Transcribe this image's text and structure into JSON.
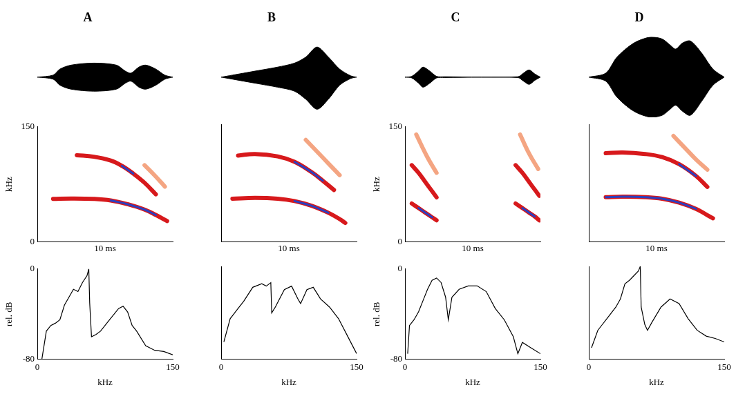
{
  "chart_data": [
    {
      "type": "area",
      "title": "A",
      "color": "#000000",
      "xlim": [
        0,
        12
      ],
      "ylim": [
        -1,
        1
      ],
      "tick_labels": false,
      "x": [
        0,
        1.4,
        2,
        3,
        5,
        7,
        7.8,
        8.3,
        9,
        9.6,
        10.5,
        11.3,
        12
      ],
      "upper": [
        0,
        0.05,
        0.2,
        0.3,
        0.35,
        0.3,
        0.15,
        0.1,
        0.25,
        0.3,
        0.2,
        0.05,
        0
      ],
      "lower": [
        0,
        -0.05,
        -0.2,
        -0.3,
        -0.35,
        -0.3,
        -0.15,
        -0.1,
        -0.25,
        -0.3,
        -0.2,
        -0.05,
        0
      ]
    },
    {
      "type": "spectrogram",
      "ylabel": "kHz",
      "xlabel": "10 ms",
      "xlim": [
        0,
        12
      ],
      "ylim": [
        0,
        150
      ],
      "yticks": [
        0,
        150
      ],
      "tick_labels": "y",
      "series": [
        {
          "color": "#f4a582",
          "line_style": "thick",
          "x": [
            9.5,
            10.5,
            11.3
          ],
          "values": [
            100,
            85,
            72
          ]
        },
        {
          "color": "#d7191c",
          "line_style": "thick",
          "x": [
            3.5,
            5,
            6.5,
            7.5,
            8.5,
            9.5,
            10.5
          ],
          "values": [
            113,
            111,
            106,
            99,
            89,
            77,
            62
          ]
        },
        {
          "color": "#d7191c",
          "line_style": "thick",
          "x": [
            1.4,
            3,
            5,
            6.5,
            8,
            9.5,
            10.5,
            11.5
          ],
          "values": [
            56,
            56.5,
            56,
            54,
            49,
            42,
            35,
            27
          ]
        },
        {
          "color": "#2b3fbf",
          "line_style": "thin",
          "x": [
            7.5,
            8.5
          ],
          "values": [
            99,
            89
          ]
        },
        {
          "color": "#2b3fbf",
          "line_style": "thin",
          "x": [
            6.5,
            8,
            9.5,
            10.5
          ],
          "values": [
            54,
            49,
            42,
            35
          ]
        }
      ]
    },
    {
      "type": "line",
      "ylabel": "rel. dB",
      "xlabel": "kHz",
      "color": "#000000",
      "xlim": [
        0,
        150
      ],
      "xticks": [
        0,
        150
      ],
      "ylim": [
        -80,
        0
      ],
      "yticks": [
        -80,
        0
      ],
      "x": [
        5,
        10,
        15,
        20,
        25,
        30,
        35,
        40,
        45,
        50,
        55,
        57,
        58,
        60,
        65,
        70,
        80,
        90,
        95,
        100,
        105,
        110,
        120,
        130,
        140,
        150
      ],
      "values": [
        -80,
        -55,
        -50,
        -48,
        -45,
        -32,
        -25,
        -18,
        -20,
        -12,
        -6,
        0,
        -30,
        -60,
        -58,
        -55,
        -45,
        -35,
        -33,
        -38,
        -50,
        -55,
        -68,
        -72,
        -73,
        -76
      ]
    },
    {
      "type": "area",
      "title": "B",
      "color": "#000000",
      "xlim": [
        0,
        12
      ],
      "ylim": [
        -1,
        1
      ],
      "tick_labels": false,
      "x": [
        0,
        1,
        3,
        5,
        6.5,
        7.5,
        8.5,
        9.5,
        10.5,
        11.5,
        12
      ],
      "upper": [
        0,
        0.05,
        0.15,
        0.25,
        0.35,
        0.5,
        0.75,
        0.5,
        0.2,
        0.03,
        0
      ],
      "lower": [
        0,
        -0.05,
        -0.15,
        -0.25,
        -0.35,
        -0.55,
        -0.8,
        -0.55,
        -0.2,
        -0.03,
        0
      ]
    },
    {
      "type": "spectrogram",
      "xlabel": "10 ms",
      "xlim": [
        0,
        12
      ],
      "ylim": [
        0,
        150
      ],
      "tick_labels": false,
      "series": [
        {
          "color": "#f4a582",
          "line_style": "thick",
          "x": [
            7.5,
            8.5,
            9.5,
            10.5
          ],
          "values": [
            130,
            115,
            100,
            85
          ]
        },
        {
          "color": "#d7191c",
          "line_style": "thick",
          "x": [
            1.5,
            3,
            5,
            6.5,
            8,
            9,
            10
          ],
          "values": [
            110,
            112,
            109,
            102,
            89,
            78,
            66
          ]
        },
        {
          "color": "#d7191c",
          "line_style": "thick",
          "x": [
            1,
            3,
            5,
            6.5,
            8,
            9.5,
            10.5,
            11
          ],
          "values": [
            55,
            56,
            55,
            52,
            46,
            37,
            29,
            24
          ]
        },
        {
          "color": "#2b3fbf",
          "line_style": "thin",
          "x": [
            6.5,
            8,
            9
          ],
          "values": [
            102,
            89,
            78
          ]
        },
        {
          "color": "#2b3fbf",
          "line_style": "thin",
          "x": [
            6.5,
            8,
            9.5
          ],
          "values": [
            52,
            46,
            37
          ]
        }
      ]
    },
    {
      "type": "line",
      "xlabel": "kHz",
      "color": "#000000",
      "xlim": [
        0,
        150
      ],
      "xticks": [
        0,
        150
      ],
      "ylim": [
        -80,
        0
      ],
      "tick_labels": "x",
      "x": [
        3,
        10,
        15,
        20,
        25,
        35,
        45,
        50,
        55,
        56,
        60,
        70,
        78,
        85,
        88,
        95,
        102,
        110,
        120,
        130,
        140,
        150
      ],
      "values": [
        -65,
        -45,
        -40,
        -35,
        -30,
        -18,
        -15,
        -17,
        -14,
        -40,
        -35,
        -20,
        -17,
        -28,
        -32,
        -20,
        -18,
        -28,
        -35,
        -45,
        -60,
        -75
      ]
    },
    {
      "type": "area",
      "title": "C",
      "color": "#000000",
      "xlim": [
        0,
        12
      ],
      "ylim": [
        -1,
        1
      ],
      "tick_labels": false,
      "x": [
        0,
        0.6,
        1.2,
        1.6,
        2.2,
        2.8,
        3.5,
        10,
        10.5,
        11,
        11.5,
        12
      ],
      "upper": [
        0,
        0.02,
        0.15,
        0.25,
        0.15,
        0.02,
        0.01,
        0.01,
        0.1,
        0.18,
        0.08,
        0
      ],
      "lower": [
        0,
        -0.02,
        -0.15,
        -0.25,
        -0.15,
        -0.02,
        -0.01,
        -0.01,
        -0.1,
        -0.18,
        -0.08,
        0
      ]
    },
    {
      "type": "spectrogram",
      "ylabel": "kHz",
      "xlabel": "10 ms",
      "xlim": [
        0,
        12
      ],
      "ylim": [
        0,
        150
      ],
      "yticks": [
        0,
        150
      ],
      "tick_labels": "y",
      "series": [
        {
          "color": "#f4a582",
          "line_style": "thick",
          "x": [
            1,
            2,
            2.8
          ],
          "values": [
            140,
            110,
            90
          ]
        },
        {
          "color": "#f4a582",
          "line_style": "thick",
          "x": [
            10.2,
            11,
            11.8
          ],
          "values": [
            140,
            115,
            95
          ]
        },
        {
          "color": "#d7191c",
          "line_style": "thick",
          "x": [
            0.6,
            1.2,
            1.8,
            2.4,
            2.8
          ],
          "values": [
            100,
            90,
            78,
            66,
            58
          ]
        },
        {
          "color": "#d7191c",
          "line_style": "thick",
          "x": [
            9.8,
            10.4,
            11,
            11.6,
            11.9
          ],
          "values": [
            100,
            90,
            78,
            66,
            60
          ]
        },
        {
          "color": "#d7191c",
          "line_style": "thick",
          "x": [
            0.6,
            1.2,
            1.8,
            2.4,
            2.8
          ],
          "values": [
            50,
            44,
            38,
            32,
            28
          ]
        },
        {
          "color": "#d7191c",
          "line_style": "thick",
          "x": [
            9.8,
            10.4,
            11,
            11.5,
            11.9
          ],
          "values": [
            50,
            44,
            38,
            33,
            28
          ]
        },
        {
          "color": "#2b3fbf",
          "line_style": "thin",
          "x": [
            1.2,
            1.8,
            2.4
          ],
          "values": [
            44,
            38,
            32
          ]
        },
        {
          "color": "#2b3fbf",
          "line_style": "thin",
          "x": [
            10.4,
            11,
            11.5
          ],
          "values": [
            44,
            38,
            33
          ]
        }
      ]
    },
    {
      "type": "line",
      "ylabel": "rel. dB",
      "xlabel": "kHz",
      "color": "#000000",
      "xlim": [
        0,
        150
      ],
      "xticks": [
        0,
        150
      ],
      "ylim": [
        -80,
        0
      ],
      "yticks": [
        -80,
        0
      ],
      "x": [
        3,
        5,
        10,
        15,
        20,
        25,
        30,
        35,
        40,
        45,
        48,
        52,
        60,
        70,
        80,
        90,
        100,
        110,
        120,
        125,
        130,
        140,
        150
      ],
      "values": [
        -75,
        -50,
        -45,
        -38,
        -28,
        -18,
        -10,
        -8,
        -12,
        -25,
        -45,
        -25,
        -18,
        -15,
        -15,
        -20,
        -35,
        -45,
        -60,
        -75,
        -65,
        -70,
        -75
      ]
    },
    {
      "type": "area",
      "title": "D",
      "color": "#000000",
      "xlim": [
        0,
        12
      ],
      "ylim": [
        -1,
        1
      ],
      "tick_labels": false,
      "x": [
        0,
        1.5,
        2.5,
        4,
        5.5,
        6.5,
        7.2,
        7.7,
        8.3,
        9,
        10,
        11,
        12
      ],
      "upper": [
        0,
        0.1,
        0.5,
        0.85,
        1,
        0.95,
        0.8,
        0.7,
        0.85,
        0.9,
        0.6,
        0.2,
        0
      ],
      "lower": [
        0,
        -0.1,
        -0.5,
        -0.85,
        -1,
        -0.95,
        -0.8,
        -0.7,
        -0.85,
        -0.95,
        -0.6,
        -0.2,
        0
      ]
    },
    {
      "type": "spectrogram",
      "xlabel": "10 ms",
      "xlim": [
        0,
        12
      ],
      "ylim": [
        0,
        150
      ],
      "tick_labels": false,
      "series": [
        {
          "color": "#f4a582",
          "line_style": "thick",
          "x": [
            7.5,
            8.5,
            9.5,
            10.5
          ],
          "values": [
            135,
            120,
            105,
            92
          ]
        },
        {
          "color": "#d7191c",
          "line_style": "thick",
          "x": [
            1.5,
            3,
            5,
            6.5,
            8,
            9.5,
            10.5
          ],
          "values": [
            113,
            114,
            112,
            108,
            99,
            84,
            70
          ]
        },
        {
          "color": "#d7191c",
          "line_style": "thick",
          "x": [
            1.5,
            3,
            5,
            6.5,
            8,
            9.5,
            10.5,
            11
          ],
          "values": [
            57,
            57.5,
            57,
            55,
            50,
            42,
            34,
            30
          ]
        },
        {
          "color": "#2b3fbf",
          "line_style": "thin",
          "x": [
            8,
            9.5
          ],
          "values": [
            99,
            84
          ]
        },
        {
          "color": "#2b3fbf",
          "line_style": "thin",
          "x": [
            1.5,
            3,
            5,
            6.5,
            8,
            9.5
          ],
          "values": [
            57,
            57.5,
            57,
            55,
            50,
            42
          ]
        }
      ]
    },
    {
      "type": "line",
      "xlabel": "kHz",
      "color": "#000000",
      "xlim": [
        0,
        150
      ],
      "xticks": [
        0,
        150
      ],
      "ylim": [
        -80,
        0
      ],
      "tick_labels": "x",
      "x": [
        3,
        10,
        15,
        20,
        30,
        35,
        40,
        45,
        50,
        55,
        57,
        58,
        62,
        65,
        70,
        80,
        90,
        100,
        110,
        120,
        130,
        140,
        150
      ],
      "values": [
        -70,
        -55,
        -50,
        -45,
        -35,
        -28,
        -15,
        -12,
        -8,
        -4,
        0,
        -35,
        -50,
        -55,
        -48,
        -35,
        -28,
        -32,
        -45,
        -55,
        -60,
        -62,
        -65
      ]
    }
  ]
}
